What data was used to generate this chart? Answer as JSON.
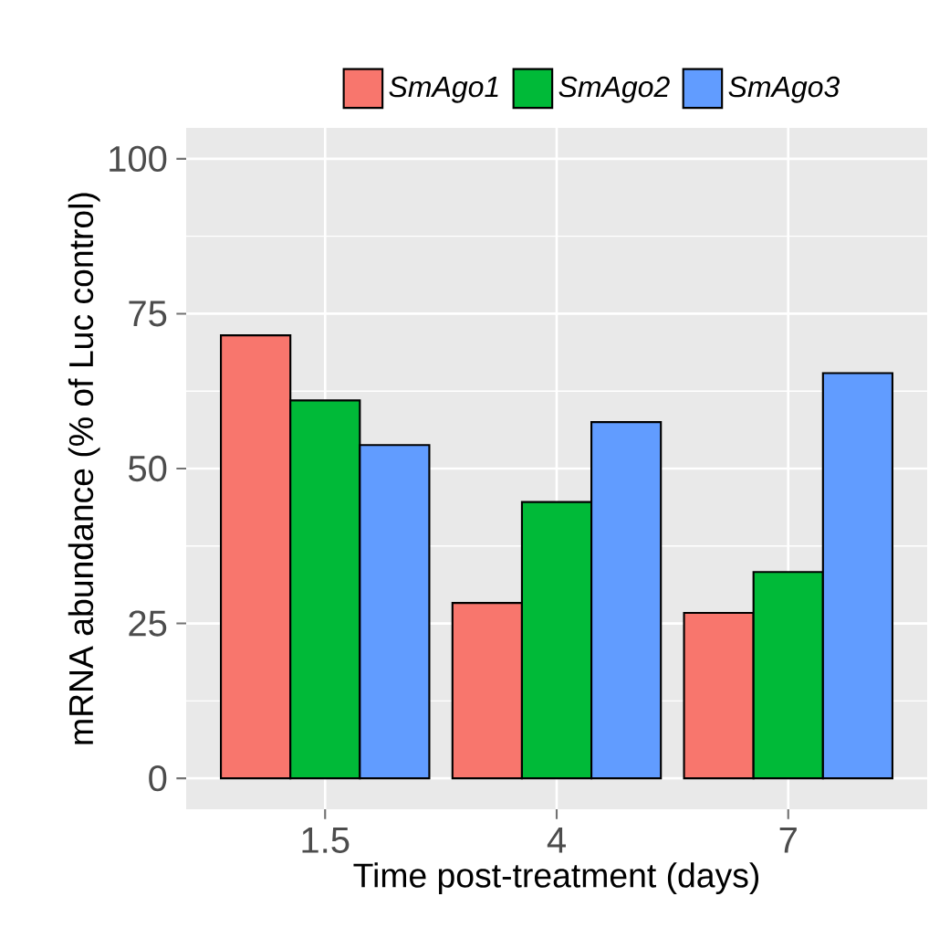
{
  "chart_data": {
    "type": "bar",
    "xlabel": "Time post-treatment (days)",
    "ylabel": "mRNA abundance (% of Luc control)",
    "categories": [
      "1.5",
      "4",
      "7"
    ],
    "series": [
      {
        "name": "SmAgo1",
        "color": "#f8766d",
        "values": [
          71.5,
          28.3,
          26.7
        ]
      },
      {
        "name": "SmAgo2",
        "color": "#00ba38",
        "values": [
          61.0,
          44.6,
          33.3
        ]
      },
      {
        "name": "SmAgo3",
        "color": "#619cff",
        "values": [
          53.8,
          57.5,
          65.4
        ]
      }
    ],
    "ylim": [
      -5,
      105
    ],
    "yticks": [
      0,
      25,
      50,
      75,
      100
    ],
    "grid": true,
    "legend": "top"
  }
}
